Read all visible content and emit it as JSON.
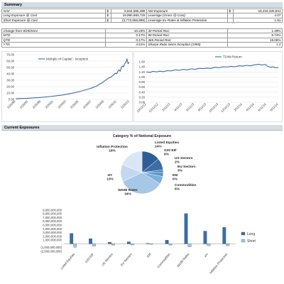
{
  "summary": {
    "title": "Summary",
    "rows": [
      {
        "label": "NAV",
        "currency": "$",
        "value": "5,844,596,399",
        "label2": "Net Exposure",
        "currency2": "$",
        "value2": "16,218,326,841"
      },
      {
        "label": "Long Exposure @ Cost",
        "currency": "$",
        "value": "19,990,983,726",
        "label2": "Leverage (Gross @ Cost)",
        "currency2": "",
        "value2": "4.07"
      },
      {
        "label": "Short Exposure @ Cost",
        "currency": "$",
        "value": "(3,772,656,885)",
        "label2": "Leverage Ex-Rates & Inflation Protection",
        "currency2": "",
        "value2": "1.91"
      }
    ],
    "perf_rows": [
      {
        "label": "Change from 8/29/2014",
        "value": "-10.23%",
        "label2": "30 Period RoC",
        "value2": "1.49%"
      },
      {
        "label": "MTD",
        "value": "0.17%",
        "label2": "90 Period RoC",
        "value2": "6.74%"
      },
      {
        "label": "QTD",
        "value": "0.17%",
        "label2": "365 Period RoC",
        "value2": "19.06%"
      },
      {
        "label": "YTD",
        "value": "4.51%",
        "label2": "Sharpe Ratio Since Inception (1995)",
        "value2": "1.2"
      }
    ]
  },
  "current_exposures": {
    "title": "Current Exposures"
  },
  "chart_data": [
    {
      "type": "line",
      "series": [
        {
          "name": "Multiple of Capital - Inception"
        }
      ],
      "ylim": [
        0,
        70
      ],
      "yticks": [
        "0.00",
        "10.00",
        "20.00",
        "30.00",
        "40.00",
        "50.00",
        "60.00",
        "70.00"
      ],
      "xticks": [
        "2/26/95",
        "2/26/97",
        "2/26/99",
        "2/26/01",
        "2/26/03",
        "2/26/05",
        "2/26/07",
        "2/26/09",
        "2/26/11",
        "2/26/13"
      ],
      "points": [
        [
          0,
          1
        ],
        [
          5,
          1.4
        ],
        [
          10,
          1.8
        ],
        [
          15,
          2.3
        ],
        [
          20,
          2.9
        ],
        [
          25,
          3.6
        ],
        [
          30,
          4.4
        ],
        [
          35,
          5.4
        ],
        [
          40,
          6.6
        ],
        [
          45,
          8
        ],
        [
          50,
          9.7
        ],
        [
          55,
          11.7
        ],
        [
          60,
          14
        ],
        [
          65,
          16.7
        ],
        [
          68,
          18.6
        ],
        [
          70,
          20
        ],
        [
          72,
          21.5
        ],
        [
          74,
          24
        ],
        [
          76,
          26
        ],
        [
          78,
          28.5
        ],
        [
          80,
          31
        ],
        [
          82,
          33.5
        ],
        [
          84,
          35
        ],
        [
          86,
          38
        ],
        [
          88,
          41
        ],
        [
          89,
          40
        ],
        [
          90,
          44
        ],
        [
          91,
          46
        ],
        [
          92,
          44
        ],
        [
          93,
          50
        ],
        [
          94,
          52
        ],
        [
          95,
          51
        ],
        [
          96,
          56
        ],
        [
          97,
          58
        ],
        [
          98,
          63
        ],
        [
          99,
          56
        ],
        [
          100,
          58
        ]
      ]
    },
    {
      "type": "line",
      "series": [
        {
          "name": "T24M Return"
        }
      ],
      "ylim": [
        0,
        1.6
      ],
      "yticks": [
        "0.00",
        "0.20",
        "0.40",
        "0.60",
        "0.80",
        "1.00",
        "1.20",
        "1.40",
        "1.60"
      ],
      "xticks": [
        "10/11/12",
        "12/11/12",
        "2/11/13",
        "4/11/13",
        "6/11/13",
        "8/11/13",
        "10/11/13",
        "12/11/13",
        "2/11/14",
        "4/11/14",
        "6/11/14",
        "8/11/14"
      ],
      "points": [
        [
          0,
          1.2
        ],
        [
          3,
          1.18
        ],
        [
          5,
          1.22
        ],
        [
          8,
          1.2
        ],
        [
          10,
          1.23
        ],
        [
          13,
          1.21
        ],
        [
          16,
          1.25
        ],
        [
          19,
          1.24
        ],
        [
          22,
          1.28
        ],
        [
          25,
          1.26
        ],
        [
          28,
          1.3
        ],
        [
          31,
          1.28
        ],
        [
          34,
          1.32
        ],
        [
          37,
          1.3
        ],
        [
          40,
          1.34
        ],
        [
          43,
          1.33
        ],
        [
          46,
          1.35
        ],
        [
          49,
          1.34
        ],
        [
          52,
          1.38
        ],
        [
          55,
          1.36
        ],
        [
          58,
          1.4
        ],
        [
          61,
          1.39
        ],
        [
          64,
          1.42
        ],
        [
          67,
          1.4
        ],
        [
          70,
          1.44
        ],
        [
          73,
          1.43
        ],
        [
          76,
          1.46
        ],
        [
          79,
          1.44
        ],
        [
          82,
          1.48
        ],
        [
          85,
          1.5
        ],
        [
          88,
          1.47
        ],
        [
          90,
          1.5
        ],
        [
          92,
          1.42
        ],
        [
          94,
          1.38
        ],
        [
          96,
          1.4
        ],
        [
          98,
          1.36
        ],
        [
          100,
          1.37
        ]
      ]
    },
    {
      "type": "pie",
      "title": "Category % of Notional Exposure",
      "slices": [
        {
          "label": "Listed Equities",
          "pct": 14,
          "color": "#2e5d95"
        },
        {
          "label": "G20 EIF",
          "pct": 9,
          "color": "#3a6ea5"
        },
        {
          "label": "US Sectors",
          "pct": 2,
          "color": "#4a80b8"
        },
        {
          "label": "EU Sectors",
          "pct": 3,
          "color": "#5a90c4"
        },
        {
          "label": "EM",
          "pct": 0,
          "color": "#6a9fd0"
        },
        {
          "label": "Commodities",
          "pct": 6,
          "color": "#7cb0dc"
        },
        {
          "label": "WGBI Rates",
          "pct": 34,
          "color": "#a7c7e6"
        },
        {
          "label": "HY",
          "pct": 13,
          "color": "#c3d8ee"
        },
        {
          "label": "Inflation Protection",
          "pct": 19,
          "color": "#d9e6f4"
        }
      ]
    },
    {
      "type": "bar",
      "categories": [
        "Listed Equities",
        "G20 EIF",
        "US Sectors",
        "EU Sectors",
        "EM",
        "Commodities",
        "WGBI Rates",
        "HY",
        "Inflation Protection"
      ],
      "series": [
        {
          "name": "Long",
          "values": [
            2800000000,
            1400000000,
            450000000,
            550000000,
            150000000,
            1000000000,
            8100000000,
            3400000000,
            4400000000
          ],
          "color": "#3a6ea5"
        },
        {
          "name": "Short",
          "values": [
            -900000000,
            -600000000,
            -350000000,
            -300000000,
            -100000000,
            -350000000,
            -800000000,
            -500000000,
            -500000000
          ],
          "color": "#a9c4e2"
        }
      ],
      "ylim": [
        -2000000000,
        9000000000
      ],
      "yticks": [
        "(2,000,000,000)",
        "(1,000,000,000)",
        "-",
        "1,000,000,000",
        "2,000,000,000",
        "3,000,000,000",
        "4,000,000,000",
        "5,000,000,000",
        "6,000,000,000",
        "7,000,000,000",
        "8,000,000,000",
        "9,000,000,000"
      ]
    }
  ]
}
